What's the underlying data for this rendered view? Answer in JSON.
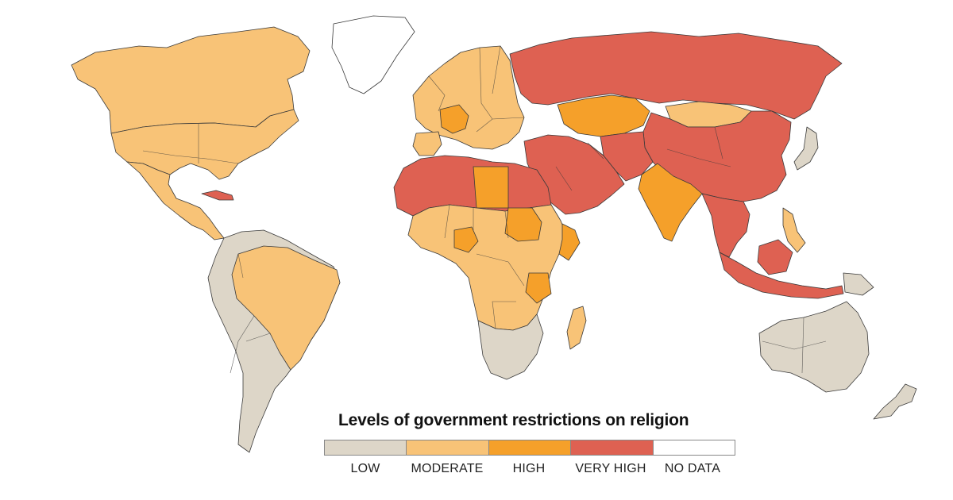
{
  "map": {
    "legend_title": "Levels of government restrictions on religion",
    "categories": [
      {
        "label": "LOW",
        "color": "#ddd6c8"
      },
      {
        "label": "MODERATE",
        "color": "#f8c377"
      },
      {
        "label": "HIGH",
        "color": "#f5a02a"
      },
      {
        "label": "VERY HIGH",
        "color": "#de6152"
      },
      {
        "label": "NO DATA",
        "color": "#ffffff"
      }
    ],
    "regions": [
      {
        "name": "Canada",
        "level": "MODERATE"
      },
      {
        "name": "United States",
        "level": "MODERATE"
      },
      {
        "name": "Mexico",
        "level": "MODERATE"
      },
      {
        "name": "Cuba",
        "level": "VERY HIGH"
      },
      {
        "name": "Greenland",
        "level": "NO DATA"
      },
      {
        "name": "South America (most)",
        "level": "LOW"
      },
      {
        "name": "Brazil",
        "level": "MODERATE"
      },
      {
        "name": "Western Europe",
        "level": "MODERATE"
      },
      {
        "name": "France",
        "level": "HIGH"
      },
      {
        "name": "Russia",
        "level": "VERY HIGH"
      },
      {
        "name": "China",
        "level": "VERY HIGH"
      },
      {
        "name": "Mongolia",
        "level": "MODERATE"
      },
      {
        "name": "Kazakhstan",
        "level": "HIGH"
      },
      {
        "name": "India",
        "level": "HIGH"
      },
      {
        "name": "Southeast Asia",
        "level": "VERY HIGH"
      },
      {
        "name": "Middle East",
        "level": "VERY HIGH"
      },
      {
        "name": "North Africa",
        "level": "VERY HIGH"
      },
      {
        "name": "Libya",
        "level": "HIGH"
      },
      {
        "name": "Sub-Saharan Africa",
        "level": "MODERATE"
      },
      {
        "name": "Sudan",
        "level": "HIGH"
      },
      {
        "name": "Nigeria",
        "level": "HIGH"
      },
      {
        "name": "Tanzania",
        "level": "HIGH"
      },
      {
        "name": "Somalia",
        "level": "HIGH"
      },
      {
        "name": "Southern Africa",
        "level": "LOW"
      },
      {
        "name": "Madagascar",
        "level": "MODERATE"
      },
      {
        "name": "Australia",
        "level": "LOW"
      },
      {
        "name": "New Zealand",
        "level": "LOW"
      },
      {
        "name": "Japan",
        "level": "LOW"
      },
      {
        "name": "Philippines",
        "level": "MODERATE"
      },
      {
        "name": "Indonesia",
        "level": "VERY HIGH"
      },
      {
        "name": "Papua New Guinea",
        "level": "LOW"
      }
    ]
  }
}
